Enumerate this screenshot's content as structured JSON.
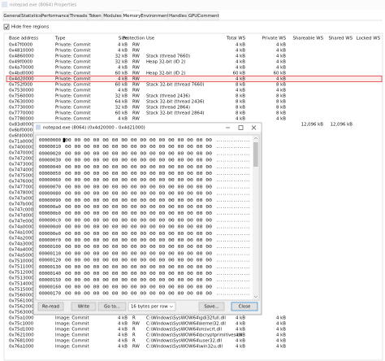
{
  "window": {
    "title": "notepad.exe (8064) Properties",
    "tabs": [
      "General",
      "Statistics",
      "Performance",
      "Threads",
      "Token",
      "Modules",
      "Memory",
      "Environment",
      "Handles",
      "GPU",
      "Comment"
    ],
    "checkbox": "Hide free regions"
  },
  "table": {
    "columns": [
      "Base address",
      "Type",
      "Size",
      "Protection",
      "Use",
      "Total WS",
      "Private WS",
      "Shareable WS",
      "Shared WS",
      "Locked WS"
    ],
    "selected": 6,
    "rows": [
      {
        "address": "0x47f0000",
        "type": "Private: Commit",
        "size": "4 kB",
        "prot": "RW",
        "total": "4 kB",
        "private": "4 kB"
      },
      {
        "address": "0x4810000",
        "type": "Private: Commit",
        "size": "4 kB",
        "prot": "RW",
        "total": "4 kB",
        "private": "4 kB"
      },
      {
        "address": "0x4860000",
        "type": "Private: Commit",
        "size": "32 kB",
        "prot": "RW",
        "use": "Stack (thread 7660)",
        "total": "4 kB",
        "private": "4 kB"
      },
      {
        "address": "0x49f0000",
        "type": "Private: Commit",
        "size": "32 kB",
        "prot": "RW",
        "use": "Heap 32-bit (ID 2)",
        "total": "4 kB",
        "private": "4 kB"
      },
      {
        "address": "0x4a70000",
        "type": "Private: Commit",
        "size": "4 kB",
        "prot": "RW",
        "total": "4 kB",
        "private": "4 kB"
      },
      {
        "address": "0x4bd0000",
        "type": "Private: Commit",
        "size": "60 kB",
        "prot": "RW",
        "use": "Heap 32-bit (ID 2)",
        "total": "60 kB",
        "private": "60 kB"
      },
      {
        "address": "0x4d20000",
        "type": "Private: Commit",
        "size": "4 kB",
        "prot": "RW",
        "total": "4 kB",
        "private": "4 kB"
      },
      {
        "address": "0x752f000",
        "type": "Private: Commit",
        "size": "60 kB",
        "prot": "RW",
        "use": "Stack 32-bit (thread 7660)",
        "total": "8 kB",
        "private": "8 kB"
      },
      {
        "address": "0x7530000",
        "type": "Private: Commit",
        "size": "4 kB",
        "prot": "RW",
        "total": "4 kB",
        "private": "4 kB"
      },
      {
        "address": "0x7560000",
        "type": "Private: Commit",
        "size": "32 kB",
        "prot": "RW",
        "use": "Stack (thread 2436)",
        "total": "8 kB",
        "private": "8 kB"
      },
      {
        "address": "0x7630000",
        "type": "Private: Commit",
        "size": "64 kB",
        "prot": "RW",
        "use": "Stack 32-bit (thread 2436)",
        "total": "8 kB",
        "private": "8 kB"
      },
      {
        "address": "0x7730000",
        "type": "Private: Commit",
        "size": "32 kB",
        "prot": "RW",
        "use": "Stack (thread 2864)",
        "total": "8 kB",
        "private": "8 kB"
      },
      {
        "address": "0x7770000",
        "type": "Private: Commit",
        "size": "60 kB",
        "prot": "RW",
        "use": "Stack 32-bit (thread 2864)",
        "total": "8 kB",
        "private": "8 kB"
      },
      {
        "address": "0x7780000",
        "type": "Private: Commit",
        "size": "4 kB",
        "prot": "RW",
        "total": "4 kB",
        "private": "4 kB"
      },
      {
        "address": "0x83d0000",
        "shareable": "12,096 kB",
        "shared": "12,096 kB"
      },
      {
        "address": "0x6bf0000"
      },
      {
        "address": "0x6fd0000"
      },
      {
        "address": "0x71a0000"
      },
      {
        "address": "0x7400000"
      },
      {
        "address": "0x7470000"
      },
      {
        "address": "0x7472000"
      },
      {
        "address": "0x7473000"
      },
      {
        "address": "0x7474000"
      },
      {
        "address": "0x7475000"
      },
      {
        "address": "0x7476000"
      },
      {
        "address": "0x7477000"
      },
      {
        "address": "0x7478000"
      },
      {
        "address": "0x747a000"
      },
      {
        "address": "0x747b000"
      },
      {
        "address": "0x747c000"
      },
      {
        "address": "0x747d000"
      },
      {
        "address": "0x747e000"
      },
      {
        "address": "0x74a0000"
      },
      {
        "address": "0x74a1000"
      },
      {
        "address": "0x74a2000"
      },
      {
        "address": "0x74a3000"
      },
      {
        "address": "0x74a4000"
      },
      {
        "address": "0x74a5000"
      },
      {
        "address": "0x7510000"
      },
      {
        "address": "0x7511000"
      },
      {
        "address": "0x7512000"
      },
      {
        "address": "0x7513000"
      },
      {
        "address": "0x7514000"
      },
      {
        "address": "0x7515000"
      },
      {
        "address": "0x7560000"
      },
      {
        "address": "0x7561000"
      },
      {
        "address": "0x7562000"
      },
      {
        "address": "0x7563000"
      },
      {
        "address": "0x75a1000",
        "type": "Image: Commit",
        "size": "4 kB",
        "prot": "R",
        "use": "C:\\Windows\\SysWOW64\\gdi32full.dll",
        "total": "4 kB",
        "private": "4 kB"
      },
      {
        "address": "0x75c1000",
        "type": "Image: Commit",
        "size": "4 kB",
        "prot": "RW",
        "use": "C:\\Windows\\SysWOW64\\kernel32.dll",
        "total": "4 kB",
        "private": "4 kB"
      },
      {
        "address": "0x75d1000",
        "type": "Image: Commit",
        "size": "4 kB",
        "prot": "R",
        "use": "C:\\Windows\\SysWOW64\\msvcrt.dll",
        "total": "4 kB",
        "private": "4 kB"
      },
      {
        "address": "0x7621000",
        "type": "Image: Commit",
        "size": "4 kB",
        "prot": "R",
        "use": "C:\\Windows\\SysWOW64\\bcryptprimitives.dll",
        "total": "4 kB",
        "private": "4 kB"
      },
      {
        "address": "0x7681000",
        "type": "Image: Commit",
        "size": "4 kB",
        "prot": "R",
        "use": "C:\\Windows\\SysWOW64\\user32.dll",
        "total": "4 kB",
        "private": "4 kB"
      },
      {
        "address": "0x76a1000",
        "type": "Image: Commit",
        "size": "4 kB",
        "prot": "RW",
        "use": "C:\\Windows\\SysWOW64\\win32u.dll",
        "total": "4 kB",
        "private": "4 kB"
      }
    ]
  },
  "dialog": {
    "title": "notepad.exe (8064) (0x4d20000 - 0x4d21000)",
    "rows": [
      [
        "00000000",
        "00 00 00 00 00 00 00 00 00 00 00 00 00 00 00 00",
        "................"
      ],
      [
        "00000010",
        "00 00 00 00 00 00 00 00 00 00 00 00 00 00 00 00",
        "................"
      ],
      [
        "00000020",
        "00 00 00 00 00 00 00 00 00 00 00 00 00 00 00 00",
        "................"
      ],
      [
        "00000030",
        "00 00 00 00 00 00 00 00 00 00 00 00 00 00 00 00",
        "................"
      ],
      [
        "00000040",
        "00 00 00 00 00 00 00 00 00 00 00 00 00 00 00 00",
        "................"
      ],
      [
        "00000050",
        "00 00 00 00 00 00 00 00 00 00 00 00 00 00 00 00",
        "................"
      ],
      [
        "00000060",
        "00 00 00 00 00 00 00 00 00 00 00 00 00 00 00 00",
        "................"
      ],
      [
        "00000070",
        "00 00 00 00 00 00 00 00 00 00 00 00 00 00 00 00",
        "................"
      ],
      [
        "00000080",
        "00 00 00 00 00 00 00 00 00 00 00 00 00 00 00 00",
        "................"
      ],
      [
        "00000090",
        "00 00 00 00 00 00 00 00 00 00 00 00 00 00 00 00",
        "................"
      ],
      [
        "000000a0",
        "00 00 00 00 00 00 00 00 00 00 00 00 00 00 00 00",
        "................"
      ],
      [
        "000000b0",
        "00 00 00 00 00 00 00 00 00 00 00 00 00 00 00 00",
        "................"
      ],
      [
        "000000c0",
        "00 00 00 00 00 00 00 00 00 00 00 00 00 00 00 00",
        "................"
      ],
      [
        "000000d0",
        "00 00 00 00 00 00 00 00 00 00 00 00 00 00 00 00",
        "................"
      ],
      [
        "000000e0",
        "00 00 00 00 00 00 00 00 00 00 00 00 00 00 00 00",
        "................"
      ],
      [
        "000000f0",
        "00 00 00 00 00 00 00 00 00 00 00 00 00 00 00 00",
        "................"
      ],
      [
        "00000100",
        "00 00 00 00 00 00 00 00 00 00 00 00 00 00 00 00",
        "................"
      ],
      [
        "00000110",
        "00 00 00 00 00 00 00 00 00 00 00 00 00 00 00 00",
        "................"
      ],
      [
        "00000120",
        "00 00 00 00 00 00 00 00 00 00 00 00 00 00 00 00",
        "................"
      ],
      [
        "00000130",
        "00 00 00 00 00 00 00 00 00 00 00 00 00 00 00 00",
        "................"
      ],
      [
        "00000140",
        "00 00 00 00 00 00 00 00 00 00 00 00 00 00 00 00",
        "................"
      ],
      [
        "00000150",
        "00 00 00 00 00 00 00 00 00 00 00 00 00 00 00 00",
        "................"
      ],
      [
        "00000160",
        "00 00 00 00 00 00 00 00 00 00 00 00 00 00 00 00",
        "................"
      ],
      [
        "00000170",
        "00 00 00 00 00 00 00 00 00 00 00 00 00 00 00 00",
        "................"
      ]
    ],
    "buttons": {
      "reread": "Re-read",
      "write": "Write",
      "goto": "Go to...",
      "rows": "16 bytes per row",
      "save": "Save...",
      "close": "Close"
    }
  }
}
